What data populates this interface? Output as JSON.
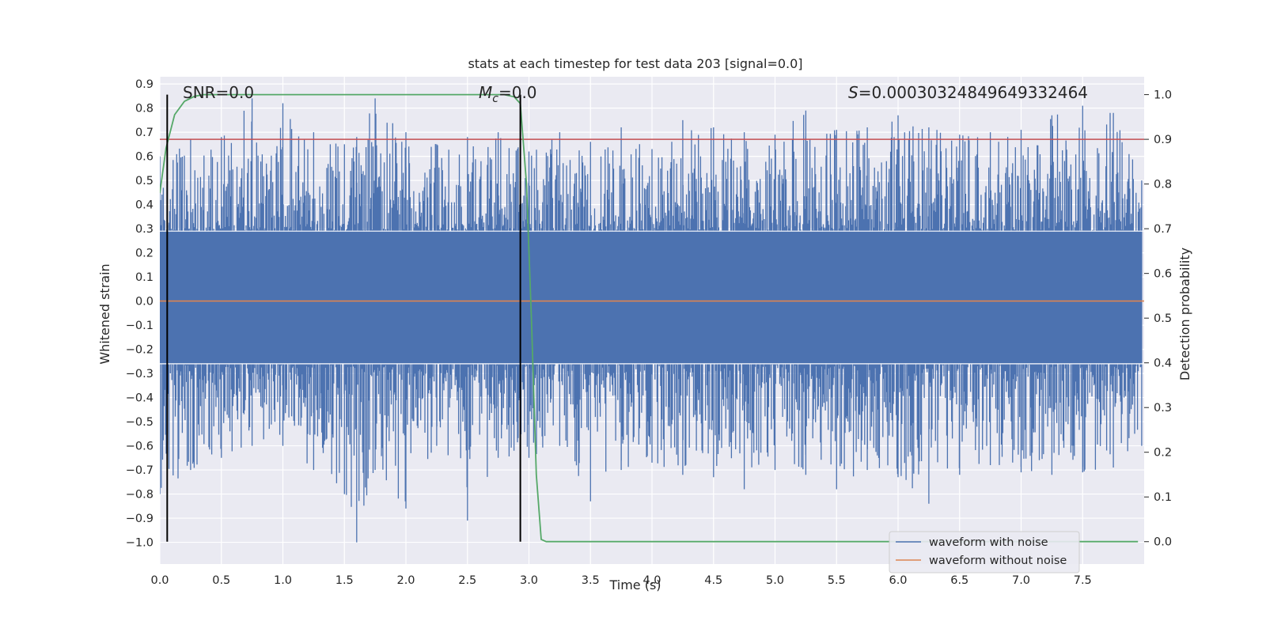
{
  "chart_data": {
    "type": "line",
    "title": "stats at each timestep for test data 203 [signal=0.0]",
    "xlabel": "Time (s)",
    "ylabel": "Whitened strain",
    "y2label": "Detection probability",
    "xlim": [
      0.0,
      8.0
    ],
    "ylim": [
      -1.09,
      0.93
    ],
    "y2lim": [
      -0.05,
      1.04
    ],
    "x_ticks": [
      "0.0",
      "0.5",
      "1.0",
      "1.5",
      "2.0",
      "2.5",
      "3.0",
      "3.5",
      "4.0",
      "4.5",
      "5.0",
      "5.5",
      "6.0",
      "6.5",
      "7.0",
      "7.5"
    ],
    "y_ticks": [
      "−1.0",
      "−0.9",
      "−0.8",
      "−0.7",
      "−0.6",
      "−0.5",
      "−0.4",
      "−0.3",
      "−0.2",
      "−0.1",
      "0.0",
      "0.1",
      "0.2",
      "0.3",
      "0.4",
      "0.5",
      "0.6",
      "0.7",
      "0.8",
      "0.9"
    ],
    "y2_ticks": [
      "0.0",
      "0.1",
      "0.2",
      "0.3",
      "0.4",
      "0.5",
      "0.6",
      "0.7",
      "0.8",
      "0.9",
      "1.0"
    ],
    "grid": true,
    "legend_position": "lower-right",
    "annotations": {
      "snr": "SNR=0.0",
      "mc_sym": "M",
      "mc_sub": "c",
      "mc_val": "=0.0",
      "s_sym": "S",
      "s_val": "=0.00030324849649332464"
    },
    "series": [
      {
        "name": "waveform with noise",
        "color": "#4c72b0",
        "description": "dense whitened noise",
        "envelope_x": [
          0.0,
          0.25,
          0.5,
          0.75,
          1.0,
          1.25,
          1.5,
          1.6,
          1.75,
          2.0,
          2.25,
          2.5,
          2.75,
          3.0,
          3.25,
          3.5,
          3.75,
          4.0,
          4.25,
          4.5,
          4.75,
          5.0,
          5.25,
          5.5,
          5.75,
          6.0,
          6.25,
          6.5,
          6.75,
          7.0,
          7.25,
          7.5,
          7.75,
          7.98
        ],
        "envelope_max": [
          0.6,
          0.67,
          0.68,
          0.84,
          0.82,
          0.7,
          0.65,
          0.68,
          0.84,
          0.7,
          0.65,
          0.68,
          0.7,
          0.62,
          0.7,
          0.66,
          0.72,
          0.63,
          0.75,
          0.72,
          0.7,
          0.69,
          0.79,
          0.71,
          0.72,
          0.77,
          0.72,
          0.69,
          0.7,
          0.71,
          0.77,
          0.81,
          0.78,
          0.5
        ],
        "envelope_min": [
          -0.8,
          -0.7,
          -0.65,
          -0.6,
          -0.6,
          -0.7,
          -0.8,
          -1.0,
          -0.7,
          -0.86,
          -0.6,
          -0.91,
          -0.65,
          -0.65,
          -0.6,
          -0.83,
          -0.7,
          -0.67,
          -0.72,
          -0.73,
          -0.78,
          -0.7,
          -0.72,
          -0.78,
          -0.7,
          -0.73,
          -0.84,
          -0.72,
          -0.68,
          -0.71,
          -0.72,
          -0.71,
          -0.69,
          -0.6
        ]
      },
      {
        "name": "waveform without noise",
        "color": "#dd8452",
        "x": [
          0.0,
          8.0
        ],
        "y": [
          0.0,
          0.0
        ]
      },
      {
        "name": "",
        "color": "#55a868",
        "axis": "right",
        "x": [
          0.0,
          0.05,
          0.12,
          0.2,
          0.28,
          0.35,
          0.45,
          1.0,
          2.0,
          2.8,
          2.88,
          2.93,
          2.98,
          3.02,
          3.06,
          3.1,
          3.14,
          3.2,
          3.3,
          7.95
        ],
        "y": [
          0.78,
          0.88,
          0.955,
          0.985,
          0.996,
          1.0,
          1.0,
          1.0,
          1.0,
          1.0,
          0.995,
          0.98,
          0.8,
          0.5,
          0.15,
          0.005,
          0.0,
          0.0,
          0.0,
          0.0
        ]
      }
    ],
    "threshold": {
      "axis": "right",
      "value": 0.9,
      "color": "#c44e52"
    },
    "vlines": [
      {
        "x": 0.06,
        "color": "#000000"
      },
      {
        "x": 2.93,
        "color": "#000000"
      }
    ]
  }
}
